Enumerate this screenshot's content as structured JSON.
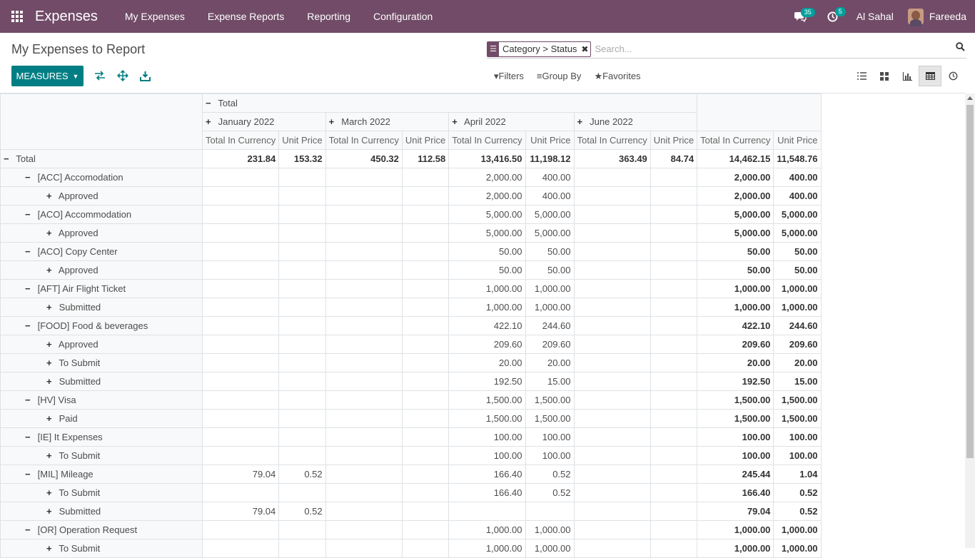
{
  "nav": {
    "brand": "Expenses",
    "items": [
      "My Expenses",
      "Expense Reports",
      "Reporting",
      "Configuration"
    ],
    "chat_badge": "35",
    "activity_badge": "5",
    "company": "Al Sahal",
    "user": "Fareeda"
  },
  "page": {
    "title": "My Expenses to Report",
    "measures_label": "MEASURES"
  },
  "search": {
    "facet": "Category > Status",
    "placeholder": "Search...",
    "filters_label": "Filters",
    "groupby_label": "Group By",
    "favorites_label": "Favorites"
  },
  "pivot": {
    "total_label": "Total",
    "months": [
      "January 2022",
      "March 2022",
      "April 2022",
      "June 2022"
    ],
    "measures": [
      "Total In Currency",
      "Unit Price"
    ],
    "rows": [
      {
        "level": 0,
        "sign": "−",
        "label": "Total",
        "values": [
          "231.84",
          "153.32",
          "450.32",
          "112.58",
          "13,416.50",
          "11,198.12",
          "363.49",
          "84.74",
          "14,462.15",
          "11,548.76"
        ],
        "bold": true
      },
      {
        "level": 1,
        "sign": "−",
        "label": "[ACC] Accomodation",
        "values": [
          "",
          "",
          "",
          "",
          "2,000.00",
          "400.00",
          "",
          "",
          "2,000.00",
          "400.00"
        ]
      },
      {
        "level": 2,
        "sign": "+",
        "label": "Approved",
        "values": [
          "",
          "",
          "",
          "",
          "2,000.00",
          "400.00",
          "",
          "",
          "2,000.00",
          "400.00"
        ]
      },
      {
        "level": 1,
        "sign": "−",
        "label": "[ACO] Accommodation",
        "values": [
          "",
          "",
          "",
          "",
          "5,000.00",
          "5,000.00",
          "",
          "",
          "5,000.00",
          "5,000.00"
        ]
      },
      {
        "level": 2,
        "sign": "+",
        "label": "Approved",
        "values": [
          "",
          "",
          "",
          "",
          "5,000.00",
          "5,000.00",
          "",
          "",
          "5,000.00",
          "5,000.00"
        ]
      },
      {
        "level": 1,
        "sign": "−",
        "label": "[ACO] Copy Center",
        "values": [
          "",
          "",
          "",
          "",
          "50.00",
          "50.00",
          "",
          "",
          "50.00",
          "50.00"
        ]
      },
      {
        "level": 2,
        "sign": "+",
        "label": "Approved",
        "values": [
          "",
          "",
          "",
          "",
          "50.00",
          "50.00",
          "",
          "",
          "50.00",
          "50.00"
        ]
      },
      {
        "level": 1,
        "sign": "−",
        "label": "[AFT] Air Flight Ticket",
        "values": [
          "",
          "",
          "",
          "",
          "1,000.00",
          "1,000.00",
          "",
          "",
          "1,000.00",
          "1,000.00"
        ]
      },
      {
        "level": 2,
        "sign": "+",
        "label": "Submitted",
        "values": [
          "",
          "",
          "",
          "",
          "1,000.00",
          "1,000.00",
          "",
          "",
          "1,000.00",
          "1,000.00"
        ]
      },
      {
        "level": 1,
        "sign": "−",
        "label": "[FOOD] Food & beverages",
        "values": [
          "",
          "",
          "",
          "",
          "422.10",
          "244.60",
          "",
          "",
          "422.10",
          "244.60"
        ]
      },
      {
        "level": 2,
        "sign": "+",
        "label": "Approved",
        "values": [
          "",
          "",
          "",
          "",
          "209.60",
          "209.60",
          "",
          "",
          "209.60",
          "209.60"
        ]
      },
      {
        "level": 2,
        "sign": "+",
        "label": "To Submit",
        "values": [
          "",
          "",
          "",
          "",
          "20.00",
          "20.00",
          "",
          "",
          "20.00",
          "20.00"
        ]
      },
      {
        "level": 2,
        "sign": "+",
        "label": "Submitted",
        "values": [
          "",
          "",
          "",
          "",
          "192.50",
          "15.00",
          "",
          "",
          "192.50",
          "15.00"
        ]
      },
      {
        "level": 1,
        "sign": "−",
        "label": "[HV] Visa",
        "values": [
          "",
          "",
          "",
          "",
          "1,500.00",
          "1,500.00",
          "",
          "",
          "1,500.00",
          "1,500.00"
        ]
      },
      {
        "level": 2,
        "sign": "+",
        "label": "Paid",
        "values": [
          "",
          "",
          "",
          "",
          "1,500.00",
          "1,500.00",
          "",
          "",
          "1,500.00",
          "1,500.00"
        ]
      },
      {
        "level": 1,
        "sign": "−",
        "label": "[IE] It Expenses",
        "values": [
          "",
          "",
          "",
          "",
          "100.00",
          "100.00",
          "",
          "",
          "100.00",
          "100.00"
        ]
      },
      {
        "level": 2,
        "sign": "+",
        "label": "To Submit",
        "values": [
          "",
          "",
          "",
          "",
          "100.00",
          "100.00",
          "",
          "",
          "100.00",
          "100.00"
        ]
      },
      {
        "level": 1,
        "sign": "−",
        "label": "[MIL] Mileage",
        "values": [
          "79.04",
          "0.52",
          "",
          "",
          "166.40",
          "0.52",
          "",
          "",
          "245.44",
          "1.04"
        ]
      },
      {
        "level": 2,
        "sign": "+",
        "label": "To Submit",
        "values": [
          "",
          "",
          "",
          "",
          "166.40",
          "0.52",
          "",
          "",
          "166.40",
          "0.52"
        ]
      },
      {
        "level": 2,
        "sign": "+",
        "label": "Submitted",
        "values": [
          "79.04",
          "0.52",
          "",
          "",
          "",
          "",
          "",
          "",
          "79.04",
          "0.52"
        ]
      },
      {
        "level": 1,
        "sign": "−",
        "label": "[OR] Operation Request",
        "values": [
          "",
          "",
          "",
          "",
          "1,000.00",
          "1,000.00",
          "",
          "",
          "1,000.00",
          "1,000.00"
        ]
      },
      {
        "level": 2,
        "sign": "+",
        "label": "To Submit",
        "values": [
          "",
          "",
          "",
          "",
          "1,000.00",
          "1,000.00",
          "",
          "",
          "1,000.00",
          "1,000.00"
        ]
      }
    ]
  }
}
